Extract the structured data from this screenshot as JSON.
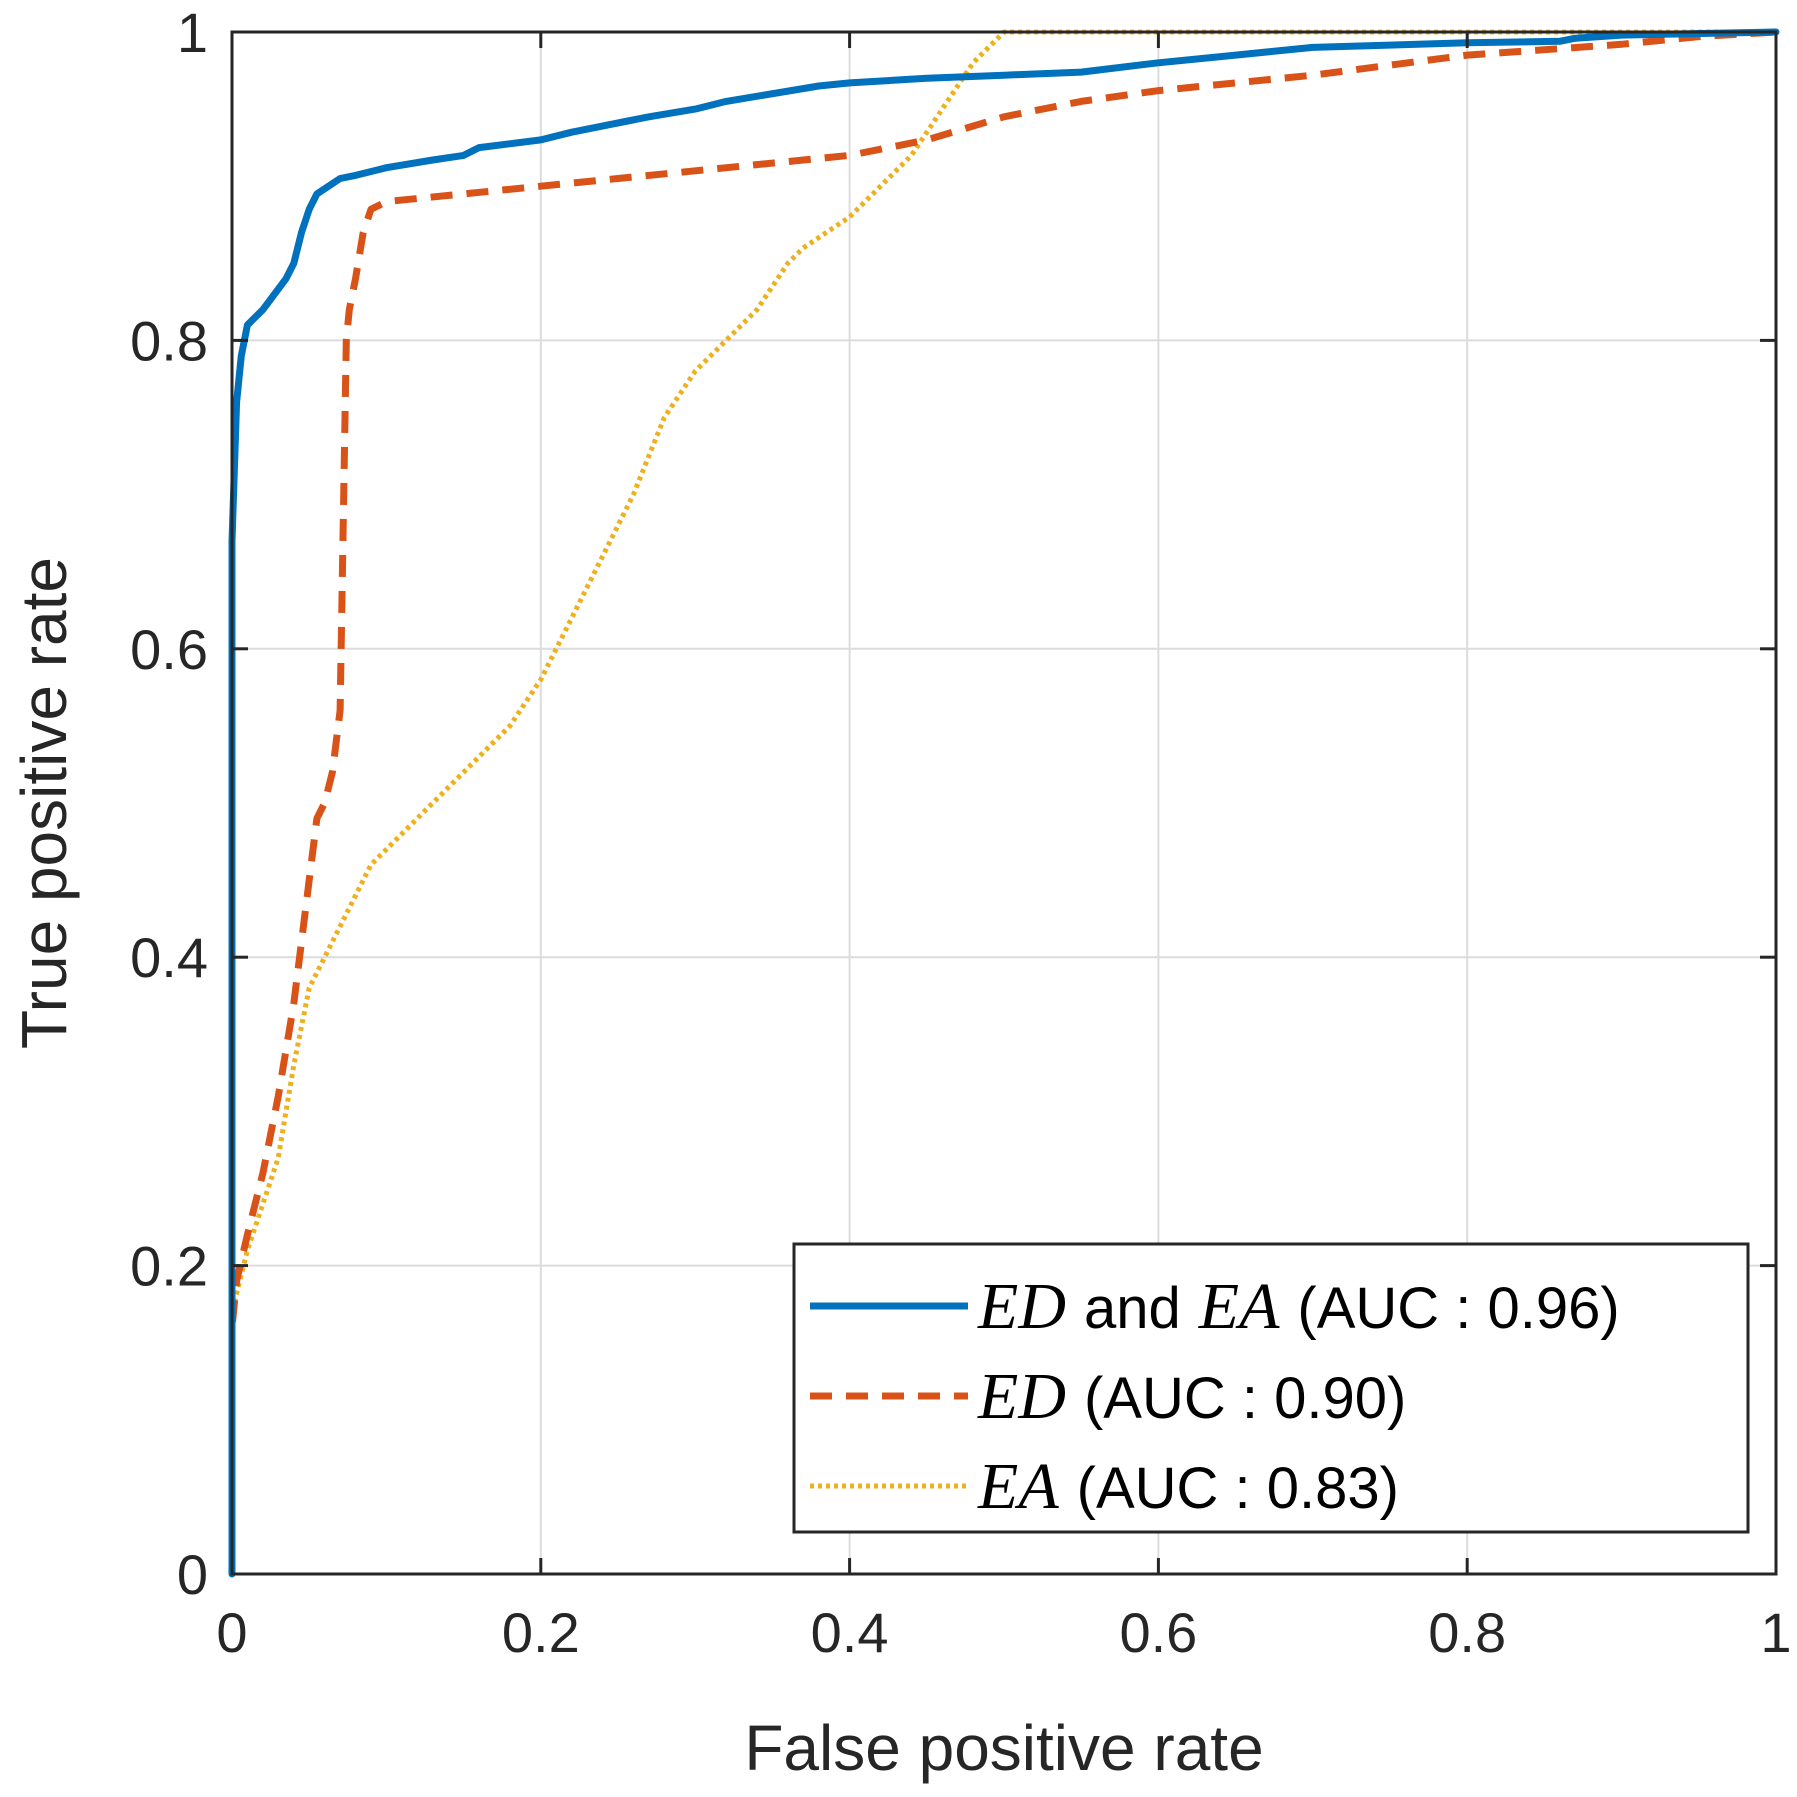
{
  "chart_data": {
    "type": "line",
    "title": "",
    "xlabel": "False positive rate",
    "ylabel": "True positive rate",
    "xlim": [
      0,
      1
    ],
    "ylim": [
      0,
      1
    ],
    "grid": true,
    "legend_position": "bottom-right",
    "x_ticks": [
      0,
      0.2,
      0.4,
      0.6,
      0.8,
      1
    ],
    "y_ticks": [
      0,
      0.2,
      0.4,
      0.6,
      0.8,
      1
    ],
    "x_tick_labels": [
      "0",
      "0.2",
      "0.4",
      "0.6",
      "0.8",
      "1"
    ],
    "y_tick_labels": [
      "0",
      "0.2",
      "0.4",
      "0.6",
      "0.8",
      "1"
    ],
    "series": [
      {
        "name": "ED and EA (AUC : 0.96)",
        "legend": {
          "math1": "ED",
          "mid": "and",
          "math2": "EA",
          "suffix": "(AUC : 0.96)"
        },
        "color": "#0072BD",
        "style": "solid",
        "x": [
          0,
          0,
          0.003,
          0.006,
          0.01,
          0.02,
          0.035,
          0.04,
          0.045,
          0.05,
          0.055,
          0.07,
          0.08,
          0.1,
          0.13,
          0.15,
          0.16,
          0.2,
          0.22,
          0.27,
          0.3,
          0.32,
          0.38,
          0.4,
          0.45,
          0.5,
          0.55,
          0.6,
          0.65,
          0.7,
          0.8,
          0.86,
          0.87,
          0.9,
          1.0
        ],
        "y": [
          0,
          0.67,
          0.76,
          0.79,
          0.81,
          0.82,
          0.84,
          0.85,
          0.87,
          0.885,
          0.895,
          0.905,
          0.907,
          0.912,
          0.917,
          0.92,
          0.925,
          0.93,
          0.935,
          0.945,
          0.95,
          0.955,
          0.965,
          0.967,
          0.97,
          0.972,
          0.974,
          0.98,
          0.985,
          0.99,
          0.993,
          0.994,
          0.996,
          0.998,
          1.0
        ]
      },
      {
        "name": "ED (AUC : 0.90)",
        "legend": {
          "math1": "ED",
          "suffix": "(AUC : 0.90)"
        },
        "color": "#D95319",
        "style": "dashed",
        "x": [
          0,
          0,
          0.003,
          0.01,
          0.02,
          0.03,
          0.04,
          0.045,
          0.05,
          0.055,
          0.06,
          0.065,
          0.07,
          0.072,
          0.074,
          0.076,
          0.08,
          0.085,
          0.09,
          0.1,
          0.15,
          0.2,
          0.25,
          0.3,
          0.35,
          0.4,
          0.45,
          0.5,
          0.55,
          0.6,
          0.7,
          0.8,
          0.9,
          0.95,
          1.0
        ],
        "y": [
          0,
          0.16,
          0.19,
          0.22,
          0.26,
          0.31,
          0.37,
          0.41,
          0.45,
          0.49,
          0.5,
          0.52,
          0.56,
          0.68,
          0.8,
          0.82,
          0.84,
          0.87,
          0.885,
          0.89,
          0.895,
          0.9,
          0.905,
          0.91,
          0.915,
          0.92,
          0.93,
          0.945,
          0.955,
          0.962,
          0.972,
          0.985,
          0.992,
          0.997,
          1.0
        ]
      },
      {
        "name": "EA (AUC : 0.83)",
        "legend": {
          "math1": "EA",
          "suffix": "(AUC : 0.83)"
        },
        "color": "#EDB120",
        "style": "dotted",
        "x": [
          0,
          0,
          0.005,
          0.01,
          0.02,
          0.03,
          0.035,
          0.04,
          0.05,
          0.07,
          0.09,
          0.1,
          0.12,
          0.15,
          0.18,
          0.2,
          0.22,
          0.24,
          0.26,
          0.28,
          0.3,
          0.32,
          0.34,
          0.36,
          0.37,
          0.4,
          0.42,
          0.44,
          0.46,
          0.48,
          0.5,
          0.6,
          0.7,
          0.8,
          0.9,
          1.0
        ],
        "y": [
          0,
          0.17,
          0.19,
          0.21,
          0.24,
          0.27,
          0.3,
          0.33,
          0.38,
          0.42,
          0.46,
          0.47,
          0.49,
          0.52,
          0.55,
          0.58,
          0.62,
          0.66,
          0.7,
          0.75,
          0.78,
          0.8,
          0.82,
          0.85,
          0.86,
          0.88,
          0.9,
          0.92,
          0.95,
          0.98,
          1.0,
          1.0,
          1.0,
          1.0,
          1.0,
          1.0
        ]
      }
    ]
  }
}
